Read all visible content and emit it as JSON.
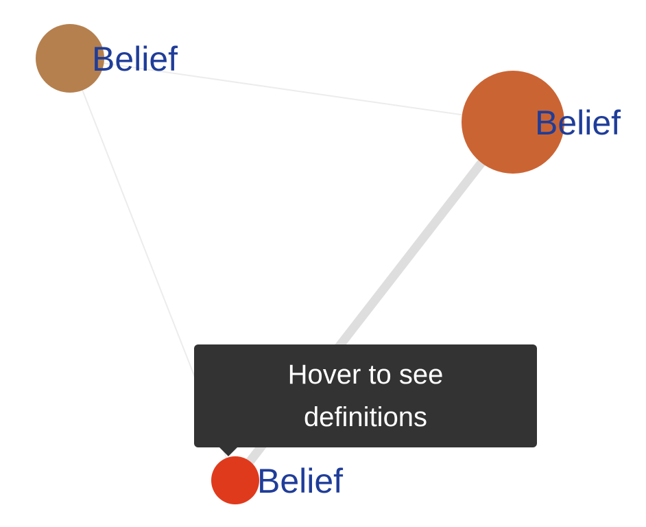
{
  "graph": {
    "colors": {
      "label": "#1f3d99",
      "edge": "#e8e8e8",
      "edge_thick": "#dedede"
    },
    "nodes": [
      {
        "id": "n1",
        "label": "Belief",
        "color": "#b5804e"
      },
      {
        "id": "n2",
        "label": "Belief",
        "color": "#cb6433"
      },
      {
        "id": "n3",
        "label": "Belief",
        "color": "#e03a1c"
      }
    ],
    "edges": [
      {
        "source": "n1",
        "target": "n2",
        "weight": "thin"
      },
      {
        "source": "n1",
        "target": "n3",
        "weight": "thin"
      },
      {
        "source": "n2",
        "target": "n3",
        "weight": "thick"
      }
    ]
  },
  "tooltip": {
    "text": "Hover to see definitions",
    "color": "#333333"
  }
}
